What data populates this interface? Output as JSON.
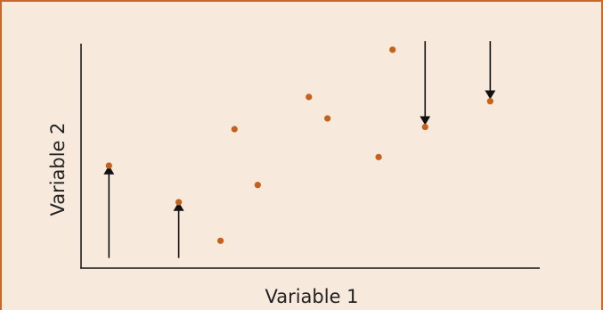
{
  "chart_data": {
    "type": "scatter",
    "xlabel": "Variable 1",
    "ylabel": "Variable 2",
    "title": "",
    "grid": false,
    "xlim": [
      0,
      100
    ],
    "ylim": [
      0,
      100
    ],
    "points": [
      {
        "x": 6,
        "y": 44
      },
      {
        "x": 21,
        "y": 27
      },
      {
        "x": 30,
        "y": 9
      },
      {
        "x": 33,
        "y": 61
      },
      {
        "x": 38,
        "y": 35
      },
      {
        "x": 49,
        "y": 76
      },
      {
        "x": 53,
        "y": 66
      },
      {
        "x": 64,
        "y": 48
      },
      {
        "x": 67,
        "y": 98
      },
      {
        "x": 74,
        "y": 62
      },
      {
        "x": 88,
        "y": 74
      }
    ],
    "arrows": [
      {
        "x": 6,
        "from_y": 1,
        "to_y": 42,
        "direction": "up"
      },
      {
        "x": 21,
        "from_y": 1,
        "to_y": 25,
        "direction": "up"
      },
      {
        "x": 74,
        "from_y": 102,
        "to_y": 65,
        "direction": "down"
      },
      {
        "x": 88,
        "from_y": 102,
        "to_y": 77,
        "direction": "down"
      }
    ],
    "colors": {
      "point": "#c4621c",
      "arrow": "#111111",
      "axis": "#111111",
      "background": "#f7e9dc",
      "frame": "#c8682a"
    }
  }
}
